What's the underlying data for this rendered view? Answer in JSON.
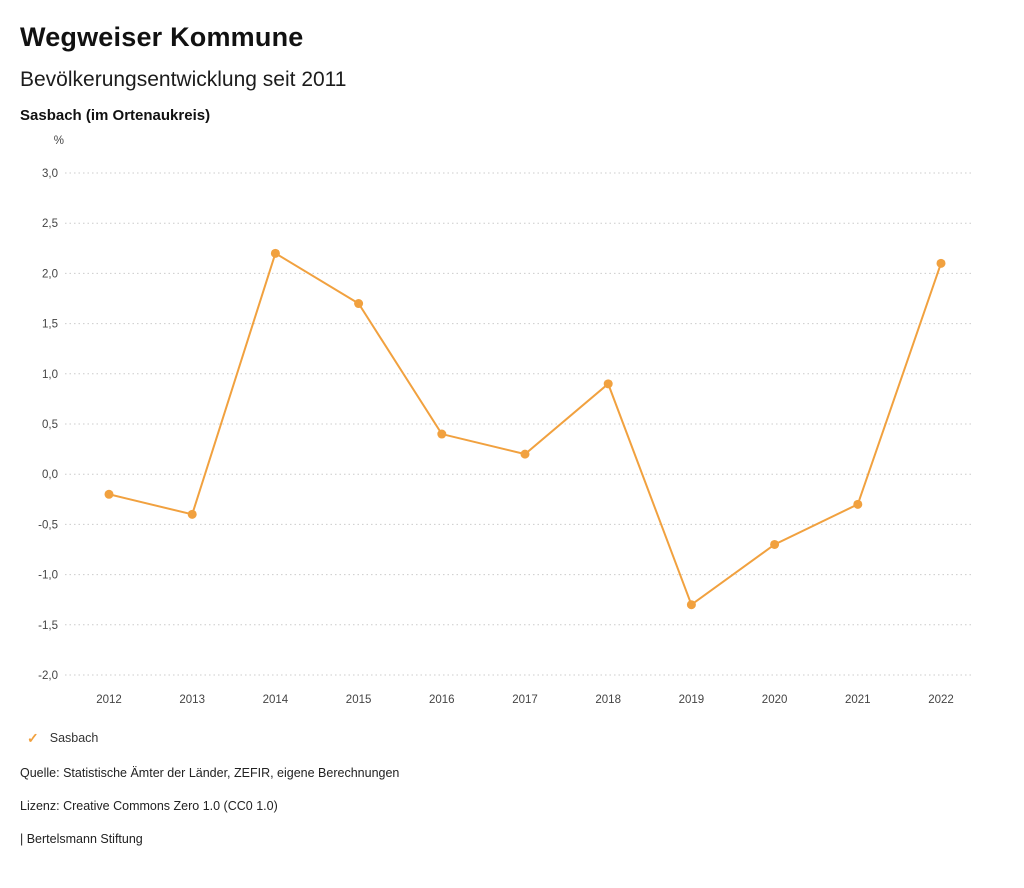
{
  "header": {
    "title": "Wegweiser Kommune",
    "subtitle": "Bevölkerungsentwicklung seit 2011",
    "location": "Sasbach (im Ortenaukreis)"
  },
  "chart_data": {
    "type": "line",
    "title": "Bevölkerungsentwicklung seit 2011 — Sasbach (im Ortenaukreis)",
    "unit_label": "%",
    "categories": [
      "2012",
      "2013",
      "2014",
      "2015",
      "2016",
      "2017",
      "2018",
      "2019",
      "2020",
      "2021",
      "2022"
    ],
    "series": [
      {
        "name": "Sasbach",
        "values": [
          -0.2,
          -0.4,
          2.2,
          1.7,
          0.4,
          0.2,
          0.9,
          -1.3,
          -0.7,
          -0.3,
          2.1
        ]
      }
    ],
    "xlabel": "",
    "ylabel": "%",
    "ylim": [
      -2.0,
      3.0
    ],
    "y_ticks": [
      3.0,
      2.5,
      2.0,
      1.5,
      1.0,
      0.5,
      0.0,
      -0.5,
      -1.0,
      -1.5,
      -2.0
    ],
    "y_tick_labels": [
      "3,0",
      "2,5",
      "2,0",
      "1,5",
      "1,0",
      "0,5",
      "0,0",
      "-0,5",
      "-1,0",
      "-1,5",
      "-2,0"
    ],
    "grid": true,
    "gridline_color": "#cccccc",
    "line_color": "#f1a13f",
    "marker_color": "#f1a13f",
    "axis_text_color": "#444444",
    "legend_position": "bottom"
  },
  "legend": {
    "items": [
      {
        "label": "Sasbach",
        "color": "#f1a13f",
        "icon": "check"
      }
    ]
  },
  "footer": {
    "source": "Quelle: Statistische Ämter der Länder, ZEFIR, eigene Berechnungen",
    "license": "Lizenz: Creative Commons Zero 1.0 (CC0 1.0)",
    "attribution": "| Bertelsmann Stiftung"
  }
}
